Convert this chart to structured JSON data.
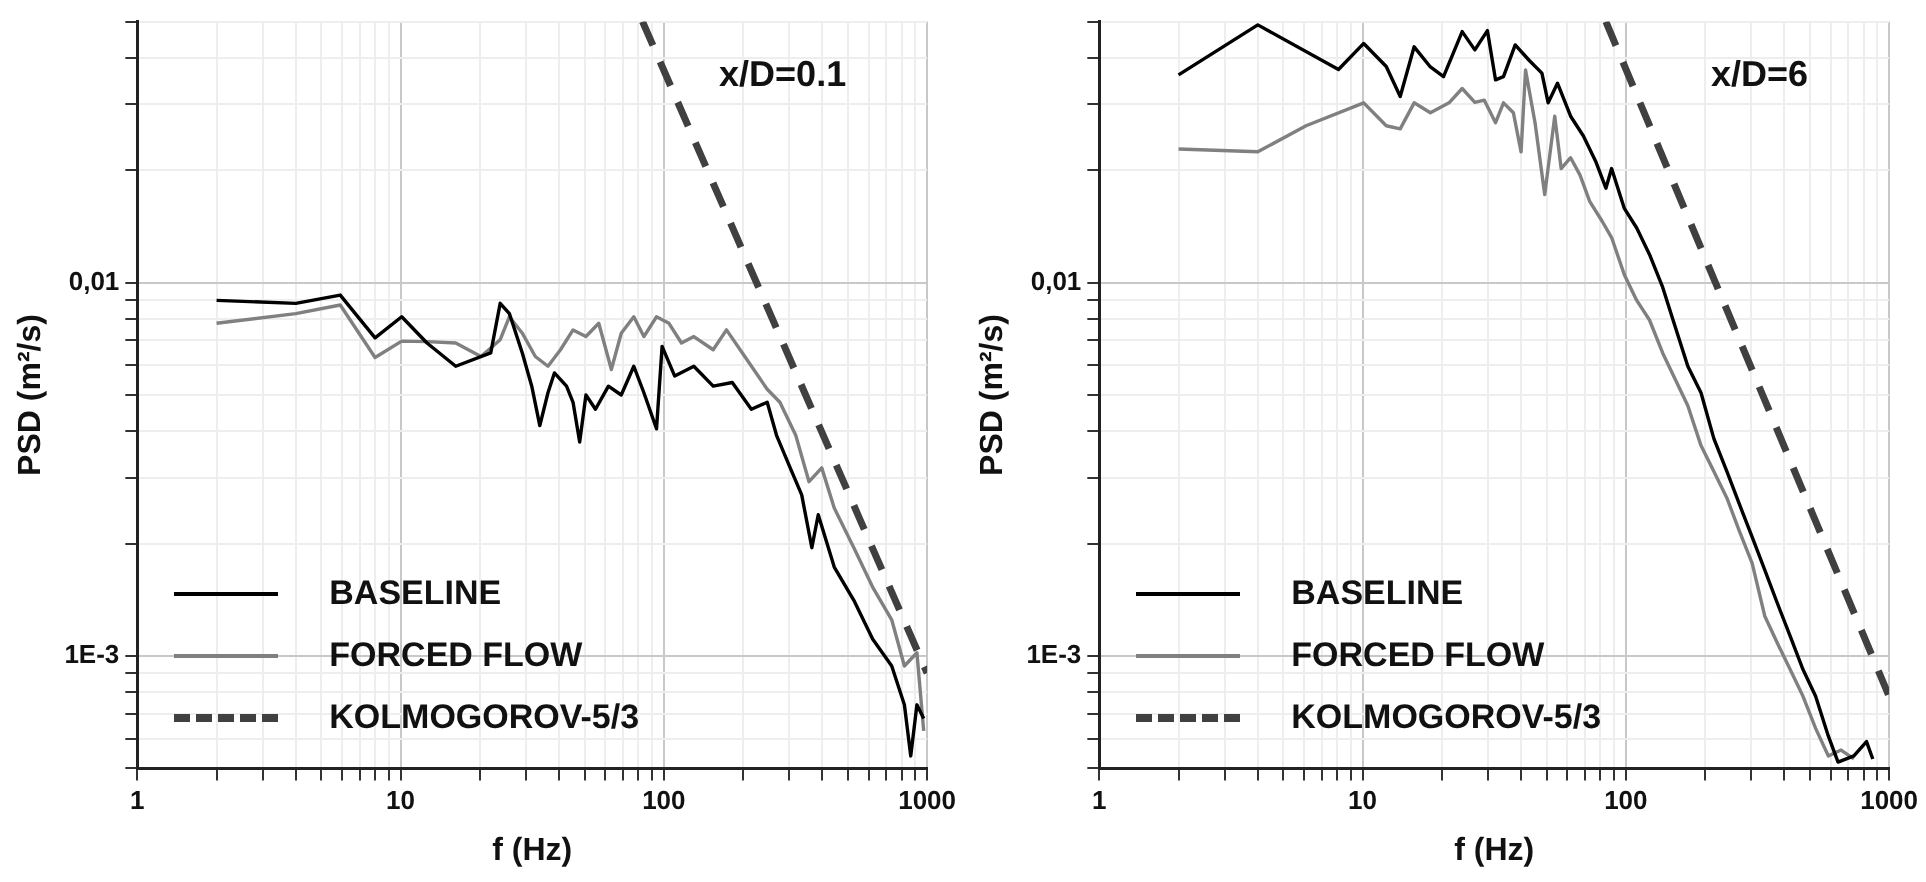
{
  "chart_data": [
    {
      "type": "line",
      "annotations": [
        "x/D=0.1"
      ],
      "xlabel": "f (Hz)",
      "ylabel": "PSD (m²/s)",
      "log": "xy",
      "grid": true,
      "legend": "bottom left",
      "marker": "none",
      "xlim": [
        1,
        1000
      ],
      "ylim": [
        0.0005,
        0.05
      ],
      "xticks": [
        1,
        {
          "value": 2,
          "label": null
        },
        {
          "value": 3,
          "label": null
        },
        {
          "value": 4,
          "label": null
        },
        {
          "value": 5,
          "label": null
        },
        {
          "value": 6,
          "label": null
        },
        {
          "value": 7,
          "label": null
        },
        {
          "value": 8,
          "label": null
        },
        {
          "value": 9,
          "label": null
        },
        10,
        {
          "value": 20,
          "label": null
        },
        {
          "value": 30,
          "label": null
        },
        {
          "value": 40,
          "label": null
        },
        {
          "value": 50,
          "label": null
        },
        {
          "value": 60,
          "label": null
        },
        {
          "value": 70,
          "label": null
        },
        {
          "value": 80,
          "label": null
        },
        {
          "value": 90,
          "label": null
        },
        100,
        {
          "value": 200,
          "label": null
        },
        {
          "value": 300,
          "label": null
        },
        {
          "value": 400,
          "label": null
        },
        {
          "value": 500,
          "label": null
        },
        {
          "value": 600,
          "label": null
        },
        {
          "value": 700,
          "label": null
        },
        {
          "value": 800,
          "label": null
        },
        {
          "value": 900,
          "label": null
        },
        1000
      ],
      "yticks": [
        {
          "value": 0.0005,
          "label": null
        },
        {
          "value": 0.0006,
          "label": null
        },
        {
          "value": 0.0007,
          "label": null
        },
        {
          "value": 0.0008,
          "label": null
        },
        {
          "value": 0.0009,
          "label": null
        },
        {
          "value": 0.001,
          "label": "1E-3"
        },
        {
          "value": 0.002,
          "label": null
        },
        {
          "value": 0.003,
          "label": null
        },
        {
          "value": 0.004,
          "label": null
        },
        {
          "value": 0.005,
          "label": null
        },
        {
          "value": 0.006,
          "label": null
        },
        {
          "value": 0.007,
          "label": null
        },
        {
          "value": 0.008,
          "label": null
        },
        {
          "value": 0.009,
          "label": null
        },
        {
          "value": 0.01,
          "label": "0,01"
        },
        {
          "value": 0.02,
          "label": null
        },
        {
          "value": 0.03,
          "label": null
        },
        {
          "value": 0.04,
          "label": null
        },
        {
          "value": 0.05,
          "label": null
        }
      ],
      "series": [
        {
          "name": "BASELINE",
          "color": "#000000",
          "line_style": "solid",
          "x": [
            2,
            4,
            5.9,
            8,
            10.1,
            12.6,
            16.2,
            22,
            23.9,
            25.9,
            29,
            31.5,
            33.8,
            36.3,
            38.4,
            42.7,
            45.2,
            47.9,
            50.6,
            55,
            61.6,
            68.9,
            76.9,
            84,
            93.8,
            98.5,
            110,
            130,
            154,
            182,
            215,
            247,
            268,
            302,
            334,
            365,
            386,
            444,
            527,
            621,
            734,
            820,
            867,
            915,
            971
          ],
          "values": [
            0.00896,
            0.0088,
            0.00926,
            0.00711,
            0.0081,
            0.00689,
            0.00597,
            0.00648,
            0.0088,
            0.00826,
            0.00648,
            0.00528,
            0.00414,
            0.00507,
            0.00573,
            0.00528,
            0.00478,
            0.00374,
            0.005,
            0.00458,
            0.00528,
            0.005,
            0.00597,
            0.00507,
            0.00406,
            0.00675,
            0.00562,
            0.00597,
            0.00528,
            0.0054,
            0.00458,
            0.00478,
            0.0039,
            0.00319,
            0.0027,
            0.00195,
            0.00239,
            0.00173,
            0.00141,
            0.00111,
            0.00094,
            0.00074,
            0.00054,
            0.00074,
            0.00068
          ]
        },
        {
          "name": "FORCED FLOW",
          "color": "#808080",
          "line_style": "solid",
          "x": [
            2,
            4,
            5.9,
            8,
            10.1,
            12.6,
            16.2,
            20.2,
            23.9,
            25.9,
            29,
            32.5,
            36.3,
            40.5,
            45.2,
            50.6,
            56.6,
            63.2,
            68.9,
            76.9,
            84,
            93.8,
            104.6,
            116.7,
            130,
            154,
            173,
            203,
            247,
            276,
            317,
            356,
            398,
            444,
            527,
            621,
            734,
            820,
            915,
            971
          ],
          "values": [
            0.00778,
            0.00826,
            0.00871,
            0.0063,
            0.00697,
            0.00695,
            0.00689,
            0.00634,
            0.00703,
            0.0081,
            0.00732,
            0.00634,
            0.00597,
            0.00661,
            0.00747,
            0.00717,
            0.00778,
            0.00585,
            0.00732,
            0.0081,
            0.00717,
            0.0081,
            0.00778,
            0.00689,
            0.00717,
            0.00661,
            0.00747,
            0.00634,
            0.00518,
            0.00478,
            0.0039,
            0.00293,
            0.00319,
            0.00249,
            0.00195,
            0.00153,
            0.00125,
            0.00094,
            0.00102,
            0.00063
          ]
        },
        {
          "name": "KOLMOGOROV-5/3",
          "color": "#404040",
          "line_style": "dashed",
          "x": [
            83,
            1000
          ],
          "values": [
            0.05,
            0.0009
          ]
        }
      ]
    },
    {
      "type": "line",
      "annotations": [
        "x/D=6"
      ],
      "xlabel": "f (Hz)",
      "ylabel": "PSD (m²/s)",
      "log": "xy",
      "grid": true,
      "legend": "bottom left",
      "marker": "none",
      "xlim": [
        1,
        1000
      ],
      "ylim": [
        0.0005,
        0.05
      ],
      "xticks": [
        1,
        {
          "value": 2,
          "label": null
        },
        {
          "value": 3,
          "label": null
        },
        {
          "value": 4,
          "label": null
        },
        {
          "value": 5,
          "label": null
        },
        {
          "value": 6,
          "label": null
        },
        {
          "value": 7,
          "label": null
        },
        {
          "value": 8,
          "label": null
        },
        {
          "value": 9,
          "label": null
        },
        10,
        {
          "value": 20,
          "label": null
        },
        {
          "value": 30,
          "label": null
        },
        {
          "value": 40,
          "label": null
        },
        {
          "value": 50,
          "label": null
        },
        {
          "value": 60,
          "label": null
        },
        {
          "value": 70,
          "label": null
        },
        {
          "value": 80,
          "label": null
        },
        {
          "value": 90,
          "label": null
        },
        100,
        {
          "value": 200,
          "label": null
        },
        {
          "value": 300,
          "label": null
        },
        {
          "value": 400,
          "label": null
        },
        {
          "value": 500,
          "label": null
        },
        {
          "value": 600,
          "label": null
        },
        {
          "value": 700,
          "label": null
        },
        {
          "value": 800,
          "label": null
        },
        {
          "value": 900,
          "label": null
        },
        1000
      ],
      "yticks": [
        {
          "value": 0.0005,
          "label": null
        },
        {
          "value": 0.0006,
          "label": null
        },
        {
          "value": 0.0007,
          "label": null
        },
        {
          "value": 0.0008,
          "label": null
        },
        {
          "value": 0.0009,
          "label": null
        },
        {
          "value": 0.001,
          "label": "1E-3"
        },
        {
          "value": 0.002,
          "label": null
        },
        {
          "value": 0.003,
          "label": null
        },
        {
          "value": 0.004,
          "label": null
        },
        {
          "value": 0.005,
          "label": null
        },
        {
          "value": 0.006,
          "label": null
        },
        {
          "value": 0.007,
          "label": null
        },
        {
          "value": 0.008,
          "label": null
        },
        {
          "value": 0.009,
          "label": null
        },
        {
          "value": 0.01,
          "label": "0,01"
        },
        {
          "value": 0.02,
          "label": null
        },
        {
          "value": 0.03,
          "label": null
        },
        {
          "value": 0.04,
          "label": null
        },
        {
          "value": 0.05,
          "label": null
        }
      ],
      "series": [
        {
          "name": "BASELINE",
          "color": "#000000",
          "line_style": "solid",
          "x": [
            2,
            4,
            8.1,
            10.1,
            12.3,
            13.9,
            15.7,
            18.1,
            20.3,
            23.9,
            26.7,
            29.8,
            32,
            34.3,
            38,
            42.9,
            48,
            50.7,
            55,
            61.7,
            69,
            77.1,
            84,
            88.3,
            98.7,
            110,
            123,
            138,
            154,
            172,
            193,
            216,
            242,
            270,
            302,
            337,
            377,
            421,
            471,
            526,
            588,
            640,
            735,
            821,
            867
          ],
          "values": [
            0.036,
            0.049,
            0.0372,
            0.0437,
            0.0379,
            0.0315,
            0.0428,
            0.0378,
            0.0356,
            0.047,
            0.042,
            0.0473,
            0.0349,
            0.0356,
            0.0433,
            0.0394,
            0.0364,
            0.0303,
            0.0342,
            0.0279,
            0.0247,
            0.021,
            0.0179,
            0.0202,
            0.0158,
            0.014,
            0.0119,
            0.00972,
            0.00762,
            0.00597,
            0.00507,
            0.00382,
            0.00312,
            0.00255,
            0.00208,
            0.0017,
            0.00138,
            0.00113,
            0.00092,
            0.00078,
            0.00061,
            0.00052,
            0.00054,
            0.00059,
            0.00053
          ]
        },
        {
          "name": "FORCED FLOW",
          "color": "#808080",
          "line_style": "solid",
          "x": [
            2,
            4,
            6.1,
            10.1,
            12.3,
            13.9,
            15.7,
            18.1,
            21.3,
            23.9,
            26.7,
            29,
            32,
            34.3,
            37.4,
            40,
            41.6,
            45.2,
            49.2,
            53.7,
            56.8,
            61.7,
            67,
            72.9,
            81.3,
            88.3,
            98.7,
            110,
            123,
            138,
            154,
            172,
            193,
            216,
            242,
            270,
            302,
            337,
            377,
            421,
            471,
            526,
            588,
            657,
            735
          ],
          "values": [
            0.0228,
            0.0224,
            0.0263,
            0.0303,
            0.0263,
            0.0258,
            0.0303,
            0.0285,
            0.0303,
            0.0331,
            0.0304,
            0.0308,
            0.0268,
            0.0303,
            0.0285,
            0.0224,
            0.0371,
            0.0268,
            0.0172,
            0.0279,
            0.0202,
            0.0216,
            0.0194,
            0.0165,
            0.0146,
            0.0132,
            0.0105,
            0.00896,
            0.00794,
            0.00648,
            0.00551,
            0.00468,
            0.00366,
            0.00312,
            0.00265,
            0.00216,
            0.00177,
            0.00128,
            0.00108,
            0.00092,
            0.00078,
            0.00064,
            0.00054,
            0.00056,
            0.00053
          ]
        },
        {
          "name": "KOLMOGOROV-5/3",
          "color": "#404040",
          "line_style": "dashed",
          "x": [
            84,
            1000
          ],
          "values": [
            0.05,
            0.00078
          ]
        }
      ]
    }
  ]
}
